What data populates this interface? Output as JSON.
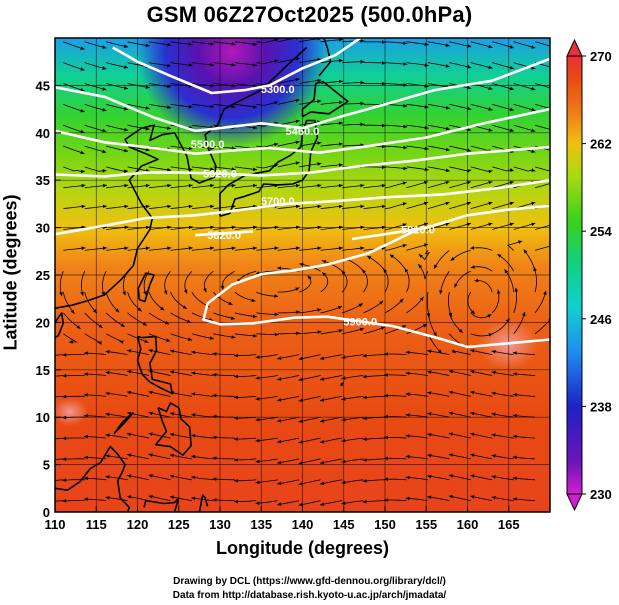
{
  "title": "GSM 06Z27Oct2025 (500.0hPa)",
  "credits": {
    "line1": "Drawing by DCL (https://www.gfd-dennou.org/library/dcl/)",
    "line2": "Data from http://database.rish.kyoto-u.ac.jp/arch/jmadata/"
  },
  "colors": {
    "cold": "#c21fb8",
    "hot": "#e02c10",
    "contour": "#ffffff",
    "streamline": "#000000"
  },
  "chart_data": {
    "type": "heatmap",
    "title": "GSM 06Z27Oct2025 (500.0hPa)",
    "xlabel": "Longitude (degrees)",
    "ylabel": "Latitude  (degrees)",
    "xlim": [
      110,
      170
    ],
    "ylim": [
      0,
      50
    ],
    "xticks": [
      110,
      115,
      120,
      125,
      130,
      135,
      140,
      145,
      150,
      155,
      160,
      165
    ],
    "yticks": [
      0,
      5,
      10,
      15,
      20,
      25,
      30,
      35,
      40,
      45
    ],
    "grid": true,
    "colorbar": {
      "min": 230,
      "max": 270,
      "ticks": [
        230,
        238,
        246,
        254,
        262,
        270
      ],
      "stops": [
        {
          "value": 230,
          "color": "#d11fd0"
        },
        {
          "value": 233,
          "color": "#6a14b8"
        },
        {
          "value": 238,
          "color": "#1c22c8"
        },
        {
          "value": 243,
          "color": "#1f8ef0"
        },
        {
          "value": 247,
          "color": "#10d0d0"
        },
        {
          "value": 251,
          "color": "#10d080"
        },
        {
          "value": 255,
          "color": "#3ad21a"
        },
        {
          "value": 259,
          "color": "#a8da10"
        },
        {
          "value": 262,
          "color": "#f0c010"
        },
        {
          "value": 265,
          "color": "#f07818"
        },
        {
          "value": 268,
          "color": "#e84a12"
        },
        {
          "value": 270,
          "color": "#e8303a"
        }
      ]
    },
    "contours": [
      {
        "label": "5300.0",
        "lon": 137,
        "lat": 44.6
      },
      {
        "label": "5460.0",
        "lon": 140,
        "lat": 40.2
      },
      {
        "label": "5500.0",
        "lon": 128.5,
        "lat": 38.8
      },
      {
        "label": "5620.0",
        "lon": 130,
        "lat": 35.7
      },
      {
        "label": "5700.0",
        "lon": 137,
        "lat": 32.8
      },
      {
        "label": "5820.0",
        "lon": 130.5,
        "lat": 29.2
      },
      {
        "label": "5910.0",
        "lon": 154,
        "lat": 29.8
      },
      {
        "label": "5900.0",
        "lon": 147,
        "lat": 20.1
      }
    ]
  }
}
